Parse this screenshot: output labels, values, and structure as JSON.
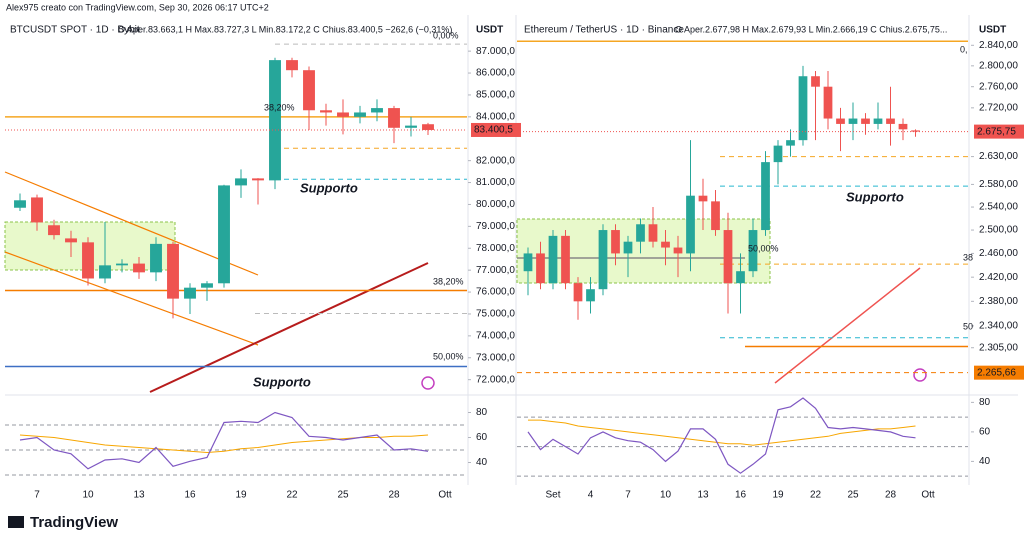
{
  "header": "Alex975 creato con TradingView.com, Sep 30, 2026 06:17 UTC+2",
  "footer_logo": "TradingView",
  "chart_data": [
    {
      "type": "candlestick",
      "title": "BTCUSDT SPOT · 1D · Bybit",
      "ohlc_label": "O Aper.83.663,1  H Max.83.727,3  L Min.83.172,2  C Chius.83.400,5  −262,6 (−0,31%)",
      "currency": "USDT",
      "categories": [
        null,
        "7",
        null,
        null,
        "10",
        null,
        null,
        "13",
        null,
        null,
        "16",
        null,
        null,
        "19",
        null,
        null,
        "22",
        null,
        null,
        "25",
        null,
        null,
        "28",
        null,
        null,
        "Ott",
        null
      ],
      "open": [
        79850,
        80320,
        79050,
        78450,
        78270,
        76620,
        77220,
        77300,
        76900,
        78200,
        75700,
        76200,
        76400,
        80870,
        81190,
        81100,
        86590,
        86130,
        84300,
        84200,
        84000,
        84200,
        84400,
        83500,
        83663.1,
        null,
        null
      ],
      "high": [
        80500,
        80450,
        79300,
        78800,
        78500,
        79200,
        77500,
        77600,
        78500,
        78300,
        76400,
        76500,
        80900,
        81600,
        81200,
        86700,
        86700,
        86300,
        84600,
        84800,
        84500,
        84800,
        84500,
        84000,
        83727.3,
        null,
        null
      ],
      "low": [
        79700,
        78800,
        78400,
        77600,
        76300,
        76400,
        76900,
        76600,
        76500,
        74800,
        75000,
        75600,
        76200,
        80300,
        80000,
        80700,
        85800,
        83400,
        83600,
        83200,
        83700,
        83800,
        82800,
        83100,
        83172.2,
        null,
        null
      ],
      "close": [
        80190,
        79180,
        78600,
        78270,
        76620,
        77220,
        77300,
        76900,
        78200,
        75700,
        76200,
        76400,
        80870,
        81190,
        81100,
        86590,
        86130,
        84300,
        84200,
        84000,
        84200,
        84400,
        83500,
        83600,
        83400.5,
        null,
        null
      ],
      "up_color": "#26a69a",
      "down_color": "#ef5350",
      "log_scale": false,
      "ylim": [
        71300,
        88650
      ],
      "yticks": [
        {
          "value": 87000,
          "label": "87.000,0"
        },
        {
          "value": 86000,
          "label": "86.000,0"
        },
        {
          "value": 85000,
          "label": "85.000,0"
        },
        {
          "value": 84000,
          "label": "84.000,0"
        },
        {
          "value": 82000,
          "label": "82.000,0"
        },
        {
          "value": 81000,
          "label": "81.000,0"
        },
        {
          "value": 80000,
          "label": "80.000,0"
        },
        {
          "value": 79000,
          "label": "79.000,0"
        },
        {
          "value": 78000,
          "label": "78.000,0"
        },
        {
          "value": 77000,
          "label": "77.000,0"
        },
        {
          "value": 76000,
          "label": "76.000,0"
        },
        {
          "value": 75000,
          "label": "75.000,0"
        },
        {
          "value": 74000,
          "label": "74.000,0"
        },
        {
          "value": 73000,
          "label": "73.000,0"
        },
        {
          "value": 72000,
          "label": "72.000,0"
        }
      ],
      "last_price": {
        "value": 83400.5,
        "label": "83.400,5",
        "color": "#ef5350"
      },
      "levels": [
        {
          "value": 84000,
          "color": "#f5a623",
          "style": "solid"
        },
        {
          "value": 76070,
          "color": "#f57c00",
          "style": "solid"
        },
        {
          "value": 72600,
          "color": "#3d6fc4",
          "style": "solid"
        },
        {
          "value": 82565,
          "color": "#f5a623",
          "style": "dashed"
        },
        {
          "value": 81150,
          "color": "#26b6cf",
          "style": "dashed"
        },
        {
          "value": 87320,
          "color": "#bbbbbb",
          "style": "dashed"
        },
        {
          "value": 75020,
          "color": "#bbbbbb",
          "style": "dashed"
        }
      ],
      "annotations": [
        {
          "text": "Supporto",
          "color": "#26b6cf"
        },
        {
          "text": "Supporto",
          "color": "#1e4fb8"
        },
        {
          "text": "38,20%",
          "color": "#f5a623"
        },
        {
          "text": "38,20%",
          "color": "#f57c00"
        },
        {
          "text": "50,00%",
          "color": "#3d6fc4"
        },
        {
          "text": "0,00%",
          "color": "#aaaaaa"
        }
      ],
      "rsi": {
        "values": [
          58,
          60,
          50,
          47,
          35,
          42,
          43,
          40,
          52,
          37,
          41,
          44,
          72,
          73,
          72,
          80,
          76,
          61,
          60,
          58,
          60,
          62,
          50,
          51,
          49,
          null,
          null
        ],
        "ma": [
          62,
          61,
          60,
          58,
          56,
          54,
          53,
          52,
          51,
          50,
          49,
          48,
          49,
          51,
          52,
          54,
          56,
          57,
          58,
          59,
          60,
          60,
          61,
          61,
          62,
          null,
          null
        ],
        "ylim": [
          22,
          94
        ],
        "yticks": [
          40,
          60,
          80
        ],
        "levels": [
          70,
          50,
          30
        ],
        "color": "#7e57c2",
        "ma_color": "#f7a600"
      }
    },
    {
      "type": "candlestick",
      "title": "Ethereum / TetherUS · 1D · Binance",
      "ohlc_label": "O Aper.2.677,98  H Max.2.679,93  L Min.2.666,19  C Chius.2.675,75...",
      "currency": "USDT",
      "categories": [
        null,
        null,
        "Set",
        null,
        null,
        "4",
        null,
        null,
        "7",
        null,
        null,
        "10",
        null,
        null,
        "13",
        null,
        null,
        "16",
        null,
        null,
        "19",
        null,
        null,
        "22",
        null,
        null,
        "25",
        null,
        null,
        "28",
        null,
        null,
        "Ott",
        null
      ],
      "open": [
        2430,
        2460,
        2410,
        2490,
        2410,
        2380,
        2400,
        2500,
        2460,
        2480,
        2510,
        2480,
        2470,
        2460,
        2560,
        2550,
        2500,
        2410,
        2430,
        2500,
        2620,
        2650,
        2660,
        2780,
        2760,
        2700,
        2690,
        2700,
        2690,
        2700,
        2690,
        2677.98,
        null,
        null
      ],
      "high": [
        2470,
        2480,
        2500,
        2500,
        2420,
        2420,
        2510,
        2510,
        2490,
        2520,
        2540,
        2500,
        2490,
        2660,
        2590,
        2570,
        2530,
        2460,
        2520,
        2640,
        2660,
        2680,
        2800,
        2790,
        2790,
        2720,
        2730,
        2710,
        2730,
        2760,
        2700,
        2679.93,
        null,
        null
      ],
      "low": [
        2390,
        2400,
        2400,
        2400,
        2350,
        2360,
        2390,
        2440,
        2420,
        2460,
        2470,
        2440,
        2420,
        2430,
        2500,
        2490,
        2360,
        2360,
        2420,
        2490,
        2580,
        2630,
        2650,
        2660,
        2680,
        2640,
        2660,
        2670,
        2680,
        2650,
        2660,
        2666.19,
        null,
        null
      ],
      "close": [
        2460,
        2410,
        2490,
        2410,
        2380,
        2400,
        2500,
        2460,
        2480,
        2510,
        2480,
        2470,
        2460,
        2560,
        2550,
        2500,
        2410,
        2430,
        2500,
        2620,
        2650,
        2660,
        2780,
        2760,
        2700,
        2690,
        2700,
        2690,
        2700,
        2690,
        2680,
        2675.75,
        null,
        null
      ],
      "up_color": "#26a69a",
      "down_color": "#ef5350",
      "log_scale": true,
      "ylim": [
        2231,
        2900
      ],
      "yticks": [
        {
          "value": 2840,
          "label": "2.840,00"
        },
        {
          "value": 2800,
          "label": "2.800,00"
        },
        {
          "value": 2760,
          "label": "2.760,00"
        },
        {
          "value": 2720,
          "label": "2.720,00"
        },
        {
          "value": 2630,
          "label": "2.630,00"
        },
        {
          "value": 2580,
          "label": "2.580,00"
        },
        {
          "value": 2540,
          "label": "2.540,00"
        },
        {
          "value": 2500,
          "label": "2.500,00"
        },
        {
          "value": 2460,
          "label": "2.460,00"
        },
        {
          "value": 2420,
          "label": "2.420,00"
        },
        {
          "value": 2380,
          "label": "2.380,00"
        },
        {
          "value": 2340,
          "label": "2.340,00"
        },
        {
          "value": 2305,
          "label": "2.305,00"
        }
      ],
      "last_price": {
        "value": 2675.75,
        "label": "2.675,75",
        "color": "#ef5350"
      },
      "levels": [
        {
          "value": 2848,
          "color": "#f5a623",
          "style": "solid"
        },
        {
          "value": 2630,
          "color": "#f5a623",
          "style": "dashed"
        },
        {
          "value": 2577,
          "color": "#26b6cf",
          "style": "dashed"
        },
        {
          "value": 2442,
          "color": "#f5a623",
          "style": "dashed"
        },
        {
          "value": 2321,
          "color": "#26b6cf",
          "style": "dashed"
        },
        {
          "value": 2307,
          "color": "#f57c00",
          "style": "solid"
        },
        {
          "value": 2265.66,
          "color": "#f57c00",
          "style": "dashed",
          "label": "2.265,66"
        }
      ],
      "annotations": [
        {
          "text": "Supporto",
          "color": "#26b6cf"
        },
        {
          "text": "50,00%",
          "color": "#3d6fc4"
        },
        {
          "text": "0,",
          "color": "#aaaaaa"
        },
        {
          "text": "38",
          "color": "#f5a623"
        },
        {
          "text": "50",
          "color": "#26b6cf"
        }
      ],
      "rsi": {
        "values": [
          60,
          48,
          55,
          50,
          45,
          56,
          60,
          56,
          54,
          53,
          48,
          40,
          47,
          62,
          62,
          55,
          38,
          32,
          38,
          45,
          75,
          77,
          83,
          76,
          63,
          62,
          63,
          62,
          61,
          60,
          57,
          56,
          null,
          null
        ],
        "ma": [
          68,
          68,
          67,
          66,
          64,
          63,
          62,
          61,
          60,
          59,
          58,
          57,
          56,
          55,
          54,
          53,
          52,
          52,
          51,
          52,
          53,
          54,
          55,
          56,
          57,
          59,
          60,
          61,
          62,
          62,
          63,
          64,
          null,
          null
        ],
        "ylim": [
          24,
          85
        ],
        "yticks": [
          40,
          60,
          80
        ],
        "levels": [
          70,
          50,
          30
        ],
        "color": "#7e57c2",
        "ma_color": "#f7a600"
      }
    }
  ]
}
